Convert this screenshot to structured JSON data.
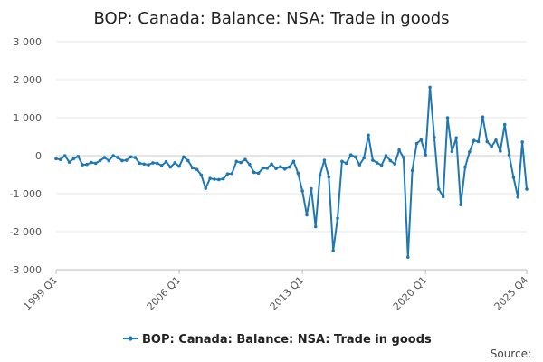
{
  "chart_data": {
    "type": "line",
    "title": "BOP: Canada: Balance: NSA: Trade in goods",
    "xlabel": "",
    "ylabel": "",
    "ylim": [
      -3000,
      3000
    ],
    "yticks": [
      3000,
      2000,
      1000,
      0,
      -1000,
      -2000,
      -3000
    ],
    "ytick_labels": [
      "3 000",
      "2 000",
      "1 000",
      "0",
      "-1 000",
      "-2 000",
      "-3 000"
    ],
    "x_start": "1999 Q1",
    "x_end": "2025 Q4",
    "xtick_labels": [
      {
        "label": "1999 Q1",
        "index": 0
      },
      {
        "label": "2006 Q1",
        "index": 28
      },
      {
        "label": "2013 Q1",
        "index": 56
      },
      {
        "label": "2020 Q1",
        "index": 84
      },
      {
        "label": "2025 Q4",
        "index": 107
      }
    ],
    "grid": true,
    "legend_position": "bottom-center",
    "series": [
      {
        "name": "BOP: Canada: Balance: NSA: Trade in goods",
        "color": "#1f78b4",
        "values": [
          -80,
          -100,
          0,
          -170,
          -80,
          -20,
          -240,
          -230,
          -180,
          -200,
          -130,
          -50,
          -130,
          0,
          -50,
          -130,
          -120,
          -30,
          -50,
          -200,
          -220,
          -240,
          -190,
          -200,
          -260,
          -160,
          -300,
          -190,
          -280,
          -30,
          -130,
          -320,
          -360,
          -510,
          -860,
          -600,
          -620,
          -630,
          -610,
          -480,
          -470,
          -150,
          -180,
          -100,
          -230,
          -440,
          -460,
          -330,
          -330,
          -220,
          -340,
          -290,
          -350,
          -300,
          -150,
          -460,
          -930,
          -1560,
          -870,
          -1870,
          -510,
          -120,
          -560,
          -2500,
          -1650,
          -150,
          -200,
          20,
          -30,
          -240,
          -60,
          540,
          -120,
          -190,
          -250,
          0,
          -130,
          -220,
          150,
          -50,
          -2670,
          -390,
          320,
          420,
          20,
          1800,
          480,
          -880,
          -1080,
          1000,
          110,
          470,
          -1290,
          -300,
          100,
          400,
          370,
          1020,
          370,
          240,
          410,
          120,
          820,
          20,
          -570,
          -1090,
          360,
          -880
        ]
      }
    ],
    "source_label": "Source:"
  }
}
